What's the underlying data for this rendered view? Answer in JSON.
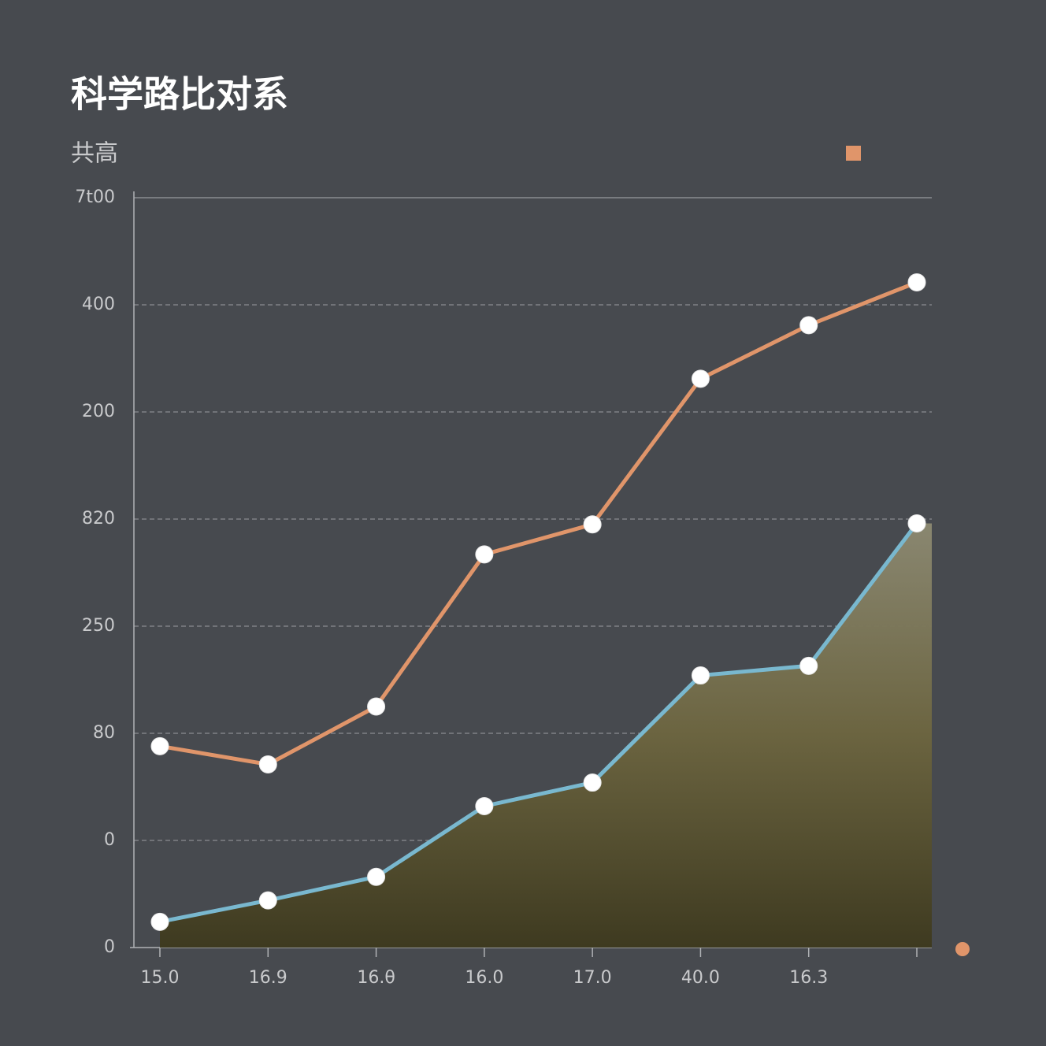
{
  "chart_data": {
    "type": "line",
    "title": "科学路比对系",
    "subtitle": "共高",
    "categories": [
      "15.0",
      "16.9",
      "16.θ",
      "16.0",
      "17.0",
      "40.0",
      "16.3",
      null
    ],
    "series": [
      {
        "color": "#e0956a",
        "values": [
          1.88,
          1.71,
          2.25,
          3.67,
          3.95,
          5.31,
          5.81,
          6.21
        ]
      },
      {
        "color": "#79b8cf",
        "area": true,
        "values": [
          0.24,
          0.44,
          0.66,
          1.32,
          1.54,
          2.54,
          2.63,
          3.96
        ]
      }
    ],
    "ylim": [
      0,
      7
    ],
    "yticks": [
      {
        "value": 0,
        "label": "0"
      },
      {
        "value": 1,
        "label": "0"
      },
      {
        "value": 2,
        "label": "80"
      },
      {
        "value": 3,
        "label": "250"
      },
      {
        "value": 4,
        "label": "820"
      },
      {
        "value": 5,
        "label": "200"
      },
      {
        "value": 6,
        "label": "400"
      },
      {
        "value": 7,
        "label": "7t00"
      }
    ],
    "grid": true
  }
}
